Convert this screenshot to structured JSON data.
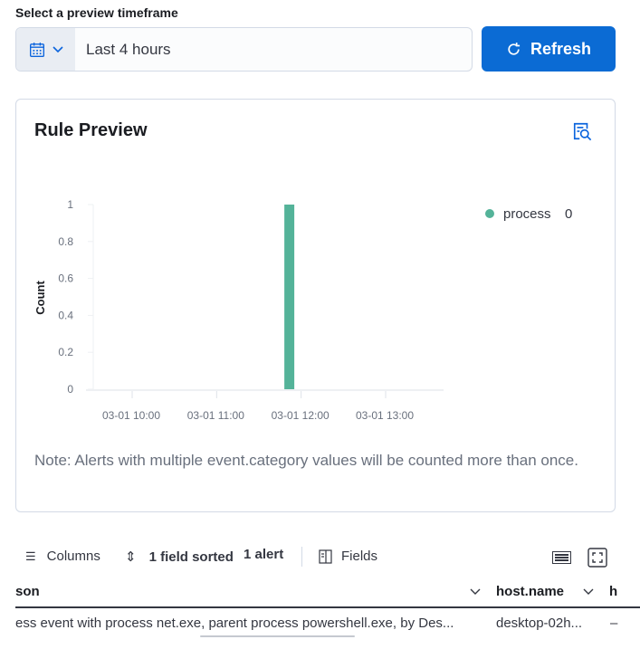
{
  "timeframe": {
    "label": "Select a preview timeframe",
    "value": "Last 4 hours",
    "refresh_label": "Refresh"
  },
  "preview": {
    "title": "Rule Preview",
    "note": "Note: Alerts with multiple event.category values will be counted more than once."
  },
  "chart_data": {
    "type": "bar",
    "ylabel": "Count",
    "ylim": [
      0,
      1
    ],
    "yticks": [
      "0",
      "0.2",
      "0.4",
      "0.6",
      "0.8",
      "1"
    ],
    "xticks": [
      "03-01 10:00",
      "03-01 11:00",
      "03-01 12:00",
      "03-01 13:00"
    ],
    "series": [
      {
        "name": "process",
        "legend_value": "0",
        "color": "#54b399",
        "x": [
          "03-01 11:50"
        ],
        "values": [
          1
        ]
      }
    ],
    "legend": "top-right",
    "grid": false
  },
  "toolbar": {
    "columns": "Columns",
    "sorted": "1 field sorted",
    "alerts": "1 alert",
    "fields": "Fields"
  },
  "table": {
    "headers": [
      "son",
      "host.name",
      "h"
    ],
    "row": [
      "ess event with process net.exe, parent process powershell.exe, by Des...",
      "desktop-02h...",
      "–"
    ]
  }
}
